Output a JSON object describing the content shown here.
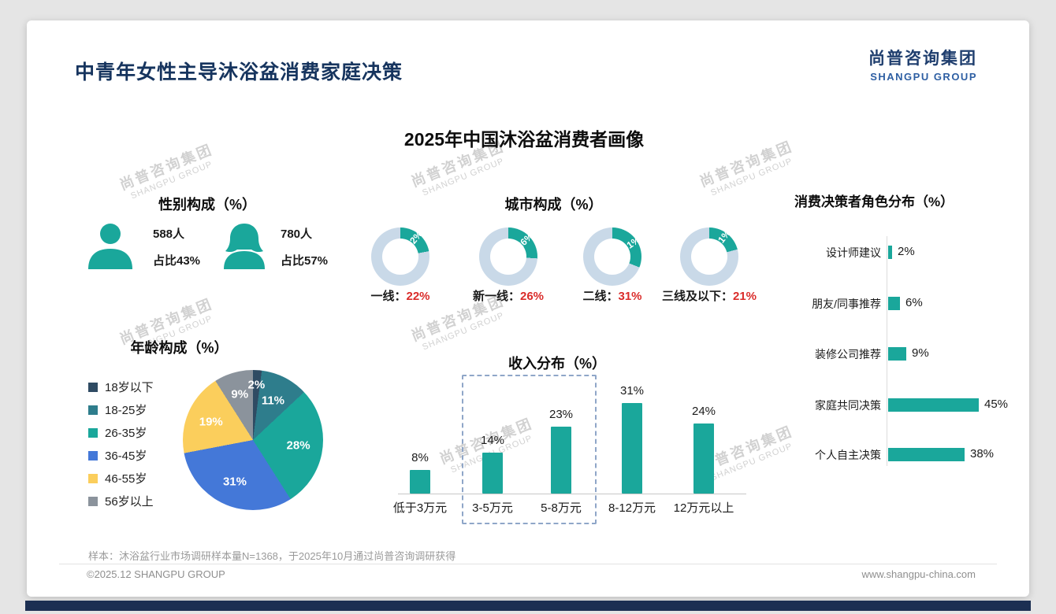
{
  "page": {
    "title": "中青年女性主导沐浴盆消费家庭决策",
    "subtitle": "2025年中国沐浴盆消费者画像",
    "logo": {
      "cn": "尚普咨询集团",
      "en": "SHANGPU GROUP"
    },
    "watermark": {
      "cn": "尚普咨询集团",
      "en": "SHANGPU GROUP"
    },
    "footer": {
      "note": "样本：沐浴盆行业市场调研样本量N=1368，于2025年10月通过尚普咨询调研获得",
      "copyright": "©2025.12 SHANGPU GROUP",
      "website": "www.shangpu-china.com"
    }
  },
  "colors": {
    "teal": "#1AA79B",
    "donut_track": "#C9D9E8",
    "red_value": "#DA2C2A",
    "navy": "#16345E",
    "bottom_bar": "#1C2F52"
  },
  "chart_data": [
    {
      "id": "gender",
      "type": "pictogram",
      "title": "性别构成（%）",
      "items": [
        {
          "icon": "male-icon",
          "count": "588人",
          "share": "占比43%",
          "value": 43
        },
        {
          "icon": "female-icon",
          "count": "780人",
          "share": "占比57%",
          "value": 57
        }
      ]
    },
    {
      "id": "city",
      "type": "donut",
      "title": "城市构成（%）",
      "categories": [
        "一线",
        "新一线",
        "二线",
        "三线及以下"
      ],
      "values": [
        22,
        26,
        31,
        21
      ],
      "separator": "：",
      "segment_color": "#1AA79B",
      "track_color": "#C9D9E8",
      "value_color": "#DA2C2A"
    },
    {
      "id": "age",
      "type": "pie",
      "title": "年龄构成（%）",
      "categories": [
        "18岁以下",
        "18-25岁",
        "26-35岁",
        "36-45岁",
        "46-55岁",
        "56岁以上"
      ],
      "values": [
        2,
        11,
        28,
        31,
        19,
        9
      ],
      "colors": [
        "#2F4B63",
        "#2E7D8C",
        "#1AA79B",
        "#4478D8",
        "#FBCE5C",
        "#8B939C"
      ],
      "legend_position": "left"
    },
    {
      "id": "income",
      "type": "bar",
      "title": "收入分布（%）",
      "categories": [
        "低于3万元",
        "3-5万元",
        "5-8万元",
        "8-12万元",
        "12万元以上"
      ],
      "values": [
        8,
        14,
        23,
        31,
        24
      ],
      "bar_color": "#1AA79B",
      "highlight": {
        "style": "dashed-box",
        "categories": [
          "3-5万元",
          "5-8万元"
        ]
      }
    },
    {
      "id": "decision",
      "type": "bar-horizontal",
      "title": "消费决策者角色分布（%）",
      "categories": [
        "设计师建议",
        "朋友/同事推荐",
        "装修公司推荐",
        "家庭共同决策",
        "个人自主决策"
      ],
      "values": [
        2,
        6,
        9,
        45,
        38
      ],
      "bar_color": "#1AA79B"
    }
  ]
}
